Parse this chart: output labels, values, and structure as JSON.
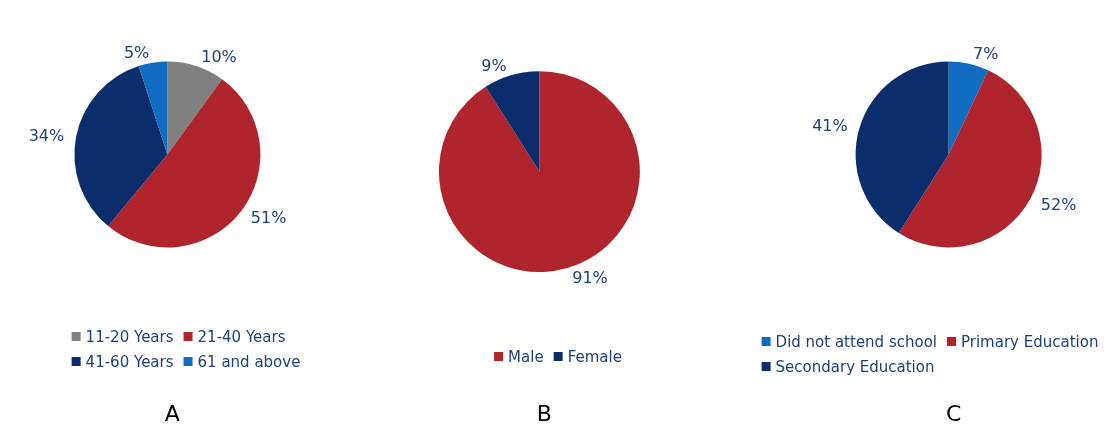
{
  "chart_data": [
    {
      "type": "pie",
      "title": "A",
      "categories": [
        "11-20 Years",
        "21-40 Years",
        "41-60 Years",
        "61 and above"
      ],
      "values": [
        10,
        51,
        34,
        5
      ],
      "value_labels": [
        "10%",
        "51%",
        "34%",
        "5%"
      ],
      "colors": [
        "#808080",
        "#b0242e",
        "#0b2d6b",
        "#0f6cc0"
      ],
      "legend": "bottom"
    },
    {
      "type": "pie",
      "title": "B",
      "categories": [
        "Male",
        "Female"
      ],
      "values": [
        91,
        9
      ],
      "value_labels": [
        "91%",
        "9%"
      ],
      "colors": [
        "#b0242e",
        "#0b2d6b"
      ],
      "legend": "bottom"
    },
    {
      "type": "pie",
      "title": "C",
      "categories": [
        "Did not attend school",
        "Primary Education",
        "Secondary Education"
      ],
      "values": [
        7,
        52,
        41
      ],
      "value_labels": [
        "7%",
        "52%",
        "41%"
      ],
      "colors": [
        "#0f6cc0",
        "#b0242e",
        "#0b2d6b"
      ],
      "legend": "bottom"
    }
  ]
}
